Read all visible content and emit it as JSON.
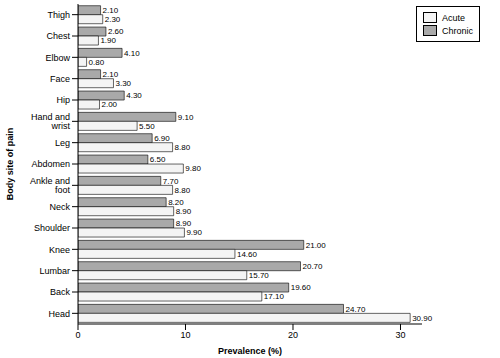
{
  "chart_data": {
    "type": "bar",
    "orientation": "horizontal",
    "x_label": "Prevalence (%)",
    "y_label": "Body site of pain",
    "categories": [
      "Thigh",
      "Chest",
      "Elbow",
      "Face",
      "Hip",
      "Hand and wrist",
      "Leg",
      "Abdomen",
      "Ankle and foot",
      "Neck",
      "Shoulder",
      "Knee",
      "Lumbar",
      "Back",
      "Head"
    ],
    "series": [
      {
        "name": "Acute",
        "color": "#f4f4f4",
        "values": [
          2.3,
          1.9,
          0.8,
          3.3,
          2.0,
          5.5,
          8.8,
          9.8,
          8.8,
          8.9,
          9.9,
          14.6,
          15.7,
          17.1,
          30.9
        ],
        "value_labels": [
          "2.30",
          "1.90",
          "0.80",
          "3.30",
          "2.00",
          "5.50",
          "8.80",
          "9.80",
          "8.80",
          "8.90",
          "9.90",
          "14.60",
          "15.70",
          "17.10",
          "30.90"
        ]
      },
      {
        "name": "Chronic",
        "color": "#a9a9a9",
        "values": [
          2.1,
          2.6,
          4.1,
          2.1,
          4.3,
          9.1,
          6.9,
          6.5,
          7.7,
          8.2,
          8.9,
          21.0,
          20.7,
          19.6,
          24.7
        ],
        "value_labels": [
          "2.10",
          "2.60",
          "4.10",
          "2.10",
          "4.30",
          "9.10",
          "6.90",
          "6.50",
          "7.70",
          "8.20",
          "8.90",
          "21.00",
          "20.70",
          "19.60",
          "24.70"
        ]
      }
    ],
    "xlim": [
      0,
      32
    ],
    "xticks": [
      0,
      10,
      20,
      30
    ],
    "legend": "upper right",
    "data_labels": true,
    "grid": false
  }
}
